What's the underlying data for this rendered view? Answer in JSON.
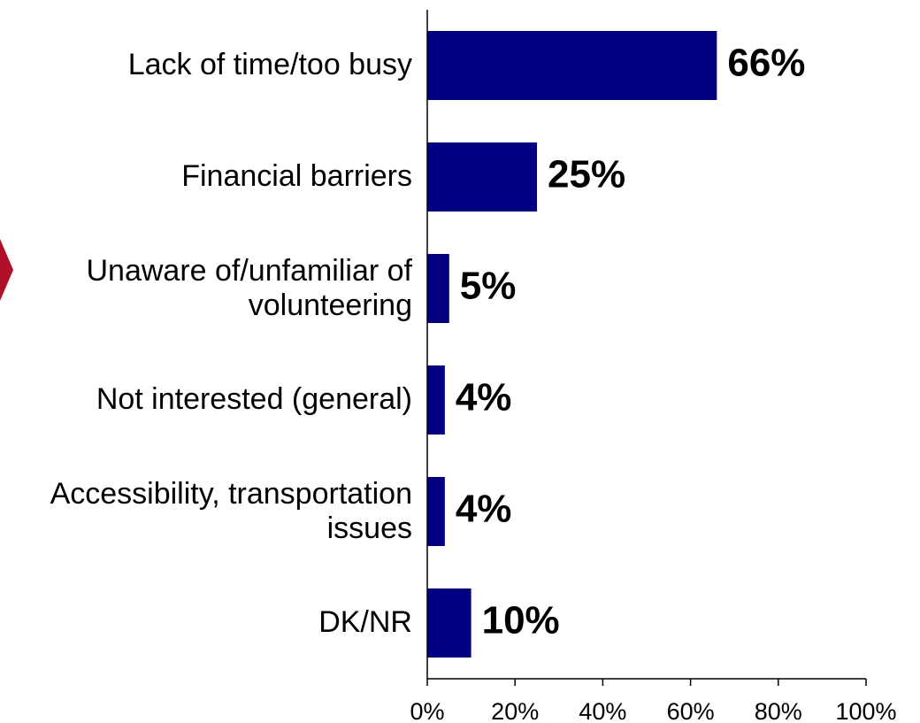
{
  "chart_data": {
    "type": "bar",
    "categories": [
      "Lack of time/too busy",
      "Financial barriers",
      "Unaware of/unfamiliar of\nvolunteering",
      "Not interested (general)",
      "Accessibility, transportation\nissues",
      "DK/NR"
    ],
    "values": [
      66,
      25,
      5,
      4,
      4,
      10
    ],
    "value_labels": [
      "66%",
      "25%",
      "5%",
      "4%",
      "4%",
      "10%"
    ],
    "color": "#000080",
    "xlim": [
      0,
      100
    ],
    "xticks": [
      {
        "value": 0,
        "label": "0%"
      },
      {
        "value": 20,
        "label": "20%"
      },
      {
        "value": 40,
        "label": "40%"
      },
      {
        "value": 60,
        "label": "60%"
      },
      {
        "value": 80,
        "label": "80%"
      },
      {
        "value": 100,
        "label": "100%"
      }
    ]
  }
}
